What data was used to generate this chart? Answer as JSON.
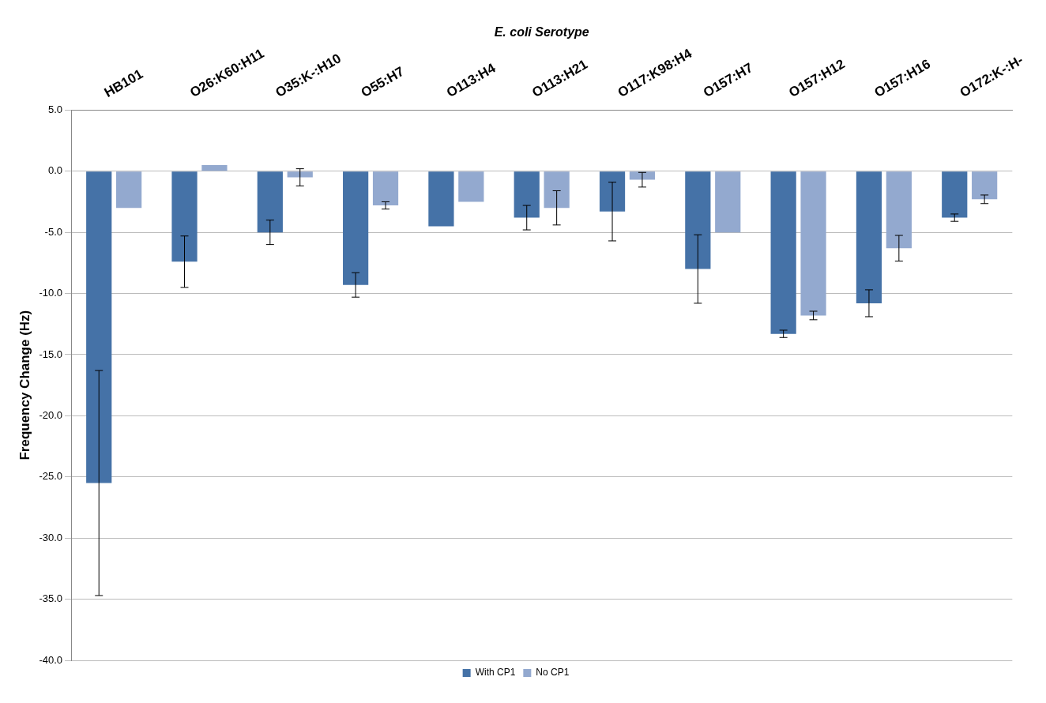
{
  "chart_data": {
    "type": "bar",
    "xlabel": "E. coli Serotype",
    "ylabel": "Frequency Change (Hz)",
    "categories": [
      "HB101",
      "O26:K60:H11",
      "O35:K-:H10",
      "O55:H7",
      "O113:H4",
      "O113:H21",
      "O117:K98:H4",
      "O157:H7",
      "O157:H12",
      "O157:H16",
      "O172:K-:H-"
    ],
    "series": [
      {
        "name": "With CP1",
        "color": "#4572a7",
        "values": [
          -25.5,
          -7.4,
          -5.0,
          -9.3,
          -4.5,
          -3.8,
          -3.3,
          -8.0,
          -13.3,
          -10.8,
          -3.8
        ],
        "errors": [
          9.2,
          2.1,
          1.0,
          1.0,
          null,
          1.0,
          2.4,
          2.8,
          0.3,
          1.1,
          0.3
        ]
      },
      {
        "name": "No CP1",
        "color": "#93a9cf",
        "values": [
          -3.0,
          0.5,
          -0.5,
          -2.8,
          -2.5,
          -3.0,
          -0.7,
          -5.0,
          -11.8,
          -6.3,
          -2.3
        ],
        "errors": [
          null,
          null,
          0.7,
          0.3,
          null,
          1.4,
          0.6,
          null,
          0.35,
          1.05,
          0.35
        ]
      }
    ],
    "ylim": [
      -40,
      5
    ],
    "yticks": [
      {
        "value": 5,
        "label": "5.0"
      },
      {
        "value": 0,
        "label": "0.0"
      },
      {
        "value": -5,
        "label": "-5.0"
      },
      {
        "value": -10,
        "label": "-10.0"
      },
      {
        "value": -15,
        "label": "-15.0"
      },
      {
        "value": -20,
        "label": "-20.0"
      },
      {
        "value": -25,
        "label": "-25.0"
      },
      {
        "value": -30,
        "label": "-30.0"
      },
      {
        "value": -35,
        "label": "-35.0"
      },
      {
        "value": -40,
        "label": "-40.0"
      }
    ],
    "grid": "y",
    "legend": "bottom"
  }
}
